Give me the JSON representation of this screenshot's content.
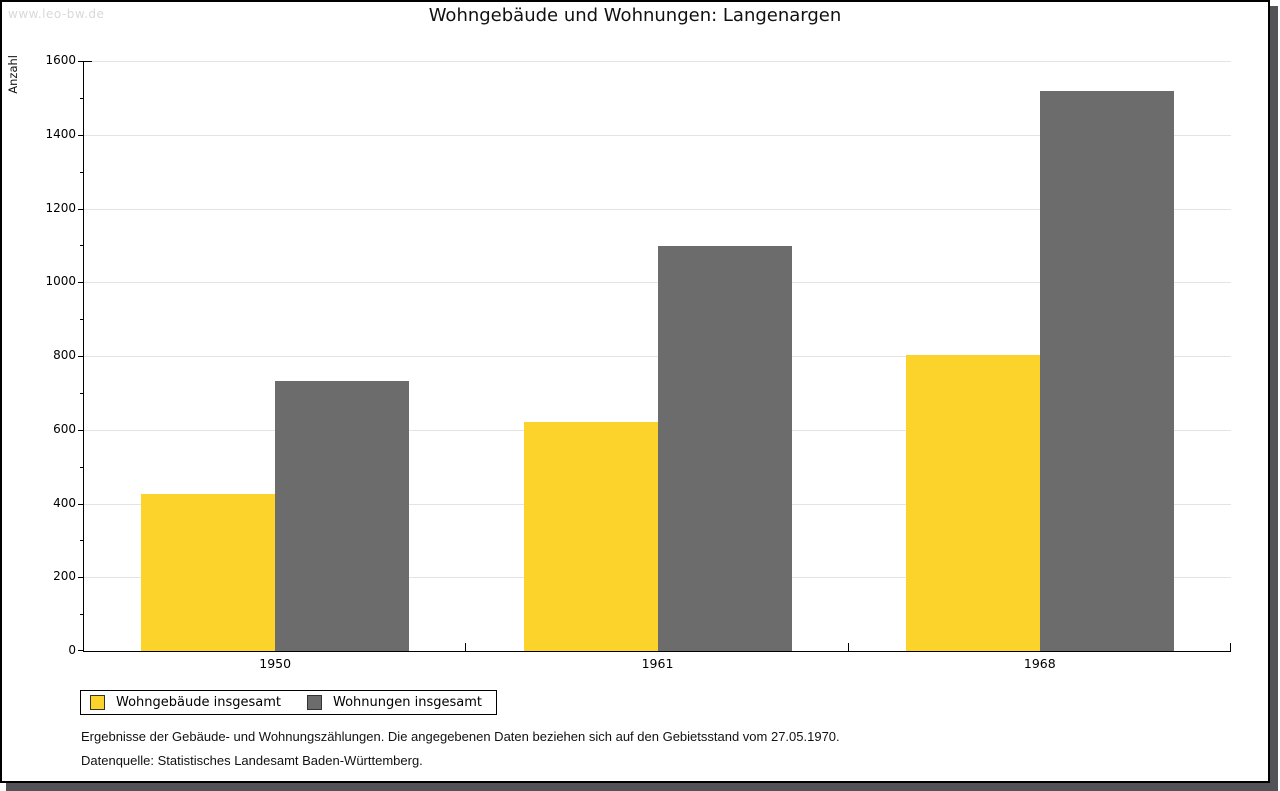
{
  "watermark": "www.leo-bw.de",
  "chart_data": {
    "type": "bar",
    "title": "Wohngebäude und Wohnungen: Langenargen",
    "ylabel": "Anzahl",
    "xlabel": "",
    "categories": [
      "1950",
      "1961",
      "1968"
    ],
    "series": [
      {
        "name": "Wohngebäude insgesamt",
        "color": "#fbd32b",
        "values": [
          425,
          620,
          803
        ]
      },
      {
        "name": "Wohnungen insgesamt",
        "color": "#6c6c6c",
        "values": [
          733,
          1098,
          1518
        ]
      }
    ],
    "ylim": [
      0,
      1600
    ],
    "ytick_major": 200,
    "ytick_minor": 100,
    "grid": true,
    "legend_position": "bottom-left"
  },
  "notes": [
    "Ergebnisse der Gebäude- und Wohnungszählungen. Die angegebenen Daten beziehen sich auf den Gebietsstand vom 27.05.1970.",
    "Datenquelle: Statistisches Landesamt Baden-Württemberg."
  ],
  "colors": {
    "series_wohngebaeude": "#fbd32b",
    "series_wohnungen": "#6c6c6c",
    "gridline": "#e4e4e4",
    "watermark_text": "#d9d9d9",
    "drop_shadow": "#535357",
    "frame_border": "#000000"
  }
}
